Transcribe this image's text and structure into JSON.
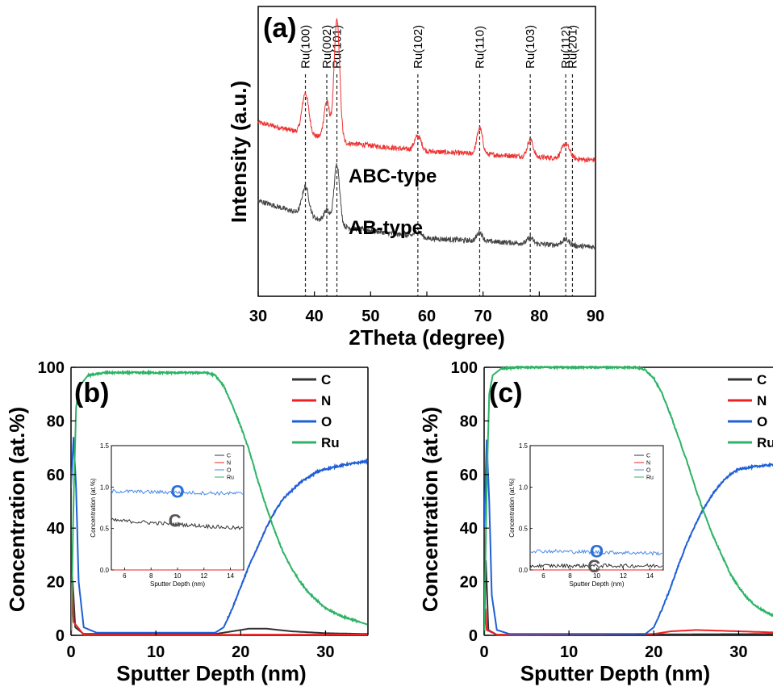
{
  "chart_data": [
    {
      "panel": "(a)",
      "type": "line",
      "xlabel": "2Theta (degree)",
      "ylabel": "Intensity (a.u.)",
      "xlim": [
        30,
        90
      ],
      "xticks": [
        30,
        40,
        50,
        60,
        70,
        80,
        90
      ],
      "ytick_labels": "none",
      "reference_lines": [
        {
          "x": 38.4,
          "label": "Ru(100)"
        },
        {
          "x": 42.2,
          "label": "Ru(002)"
        },
        {
          "x": 44.0,
          "label": "Ru(101)"
        },
        {
          "x": 58.4,
          "label": "Ru(102)"
        },
        {
          "x": 69.4,
          "label": "Ru(110)"
        },
        {
          "x": 78.4,
          "label": "Ru(103)"
        },
        {
          "x": 84.7,
          "label": "Ru(112)"
        },
        {
          "x": 85.9,
          "label": "Ru(201)"
        }
      ],
      "series": [
        {
          "name": "ABC-type",
          "color": "#ee3333",
          "baseline": [
            [
              30,
              0.6
            ],
            [
              45,
              0.53
            ],
            [
              60,
              0.5
            ],
            [
              90,
              0.47
            ]
          ],
          "peaks": [
            {
              "x": 38.4,
              "height": 0.14,
              "width": 0.6
            },
            {
              "x": 42.2,
              "height": 0.13,
              "width": 0.5
            },
            {
              "x": 44.0,
              "height": 0.42,
              "width": 0.5
            },
            {
              "x": 58.4,
              "height": 0.05,
              "width": 0.6
            },
            {
              "x": 69.4,
              "height": 0.09,
              "width": 0.5
            },
            {
              "x": 78.4,
              "height": 0.06,
              "width": 0.5
            },
            {
              "x": 84.7,
              "height": 0.05,
              "width": 0.7
            }
          ]
        },
        {
          "name": "AB-type",
          "color": "#444444",
          "baseline": [
            [
              30,
              0.33
            ],
            [
              45,
              0.24
            ],
            [
              60,
              0.2
            ],
            [
              90,
              0.17
            ]
          ],
          "peaks": [
            {
              "x": 38.4,
              "height": 0.1,
              "width": 0.6
            },
            {
              "x": 42.2,
              "height": 0.04,
              "width": 0.5
            },
            {
              "x": 44.0,
              "height": 0.21,
              "width": 0.5
            },
            {
              "x": 58.4,
              "height": 0.02,
              "width": 0.6
            },
            {
              "x": 69.4,
              "height": 0.03,
              "width": 0.5
            },
            {
              "x": 78.4,
              "height": 0.02,
              "width": 0.5
            },
            {
              "x": 84.7,
              "height": 0.02,
              "width": 0.7
            }
          ]
        }
      ]
    },
    {
      "panel": "(b)",
      "type": "line",
      "xlabel": "Sputter Depth (nm)",
      "ylabel": "Concentration (at.%)",
      "xlim": [
        0,
        35
      ],
      "ylim": [
        0,
        100
      ],
      "xticks": [
        0,
        10,
        20,
        30
      ],
      "yticks": [
        0,
        20,
        40,
        60,
        80,
        100
      ],
      "legend": [
        "C",
        "N",
        "O",
        "Ru"
      ],
      "legend_position": "top-right",
      "series": [
        {
          "name": "C",
          "color": "#333333",
          "points": [
            [
              0,
              0
            ],
            [
              0.2,
              20
            ],
            [
              0.5,
              3
            ],
            [
              1.5,
              0.5
            ],
            [
              17,
              0.5
            ],
            [
              19,
              1.5
            ],
            [
              21,
              2.5
            ],
            [
              23,
              2.5
            ],
            [
              26,
              1.5
            ],
            [
              30,
              0.8
            ],
            [
              35,
              0.5
            ]
          ]
        },
        {
          "name": "N",
          "color": "#ee2222",
          "points": [
            [
              0,
              0
            ],
            [
              0.15,
              22
            ],
            [
              0.3,
              5
            ],
            [
              1.5,
              0.2
            ],
            [
              35,
              0.3
            ]
          ]
        },
        {
          "name": "O",
          "color": "#1f5fd6",
          "points": [
            [
              0,
              55
            ],
            [
              0.3,
              74
            ],
            [
              0.6,
              55
            ],
            [
              0.9,
              20
            ],
            [
              1.5,
              3
            ],
            [
              3,
              1
            ],
            [
              17,
              1
            ],
            [
              18,
              3
            ],
            [
              19,
              10
            ],
            [
              20,
              18
            ],
            [
              21,
              26
            ],
            [
              22,
              33
            ],
            [
              23,
              40
            ],
            [
              24,
              46
            ],
            [
              25,
              51
            ],
            [
              26,
              54
            ],
            [
              27,
              57
            ],
            [
              28,
              59
            ],
            [
              29,
              61
            ],
            [
              30,
              62
            ],
            [
              32,
              63.5
            ],
            [
              35,
              65
            ]
          ]
        },
        {
          "name": "Ru",
          "color": "#2db366",
          "points": [
            [
              0,
              0
            ],
            [
              0.3,
              50
            ],
            [
              0.6,
              85
            ],
            [
              1,
              93
            ],
            [
              2,
              97
            ],
            [
              4,
              98
            ],
            [
              10,
              98
            ],
            [
              16,
              98
            ],
            [
              17,
              97
            ],
            [
              18,
              93
            ],
            [
              19,
              86
            ],
            [
              20,
              78
            ],
            [
              21,
              69
            ],
            [
              22,
              58
            ],
            [
              23,
              48
            ],
            [
              24,
              39
            ],
            [
              25,
              31
            ],
            [
              26,
              25
            ],
            [
              27,
              20
            ],
            [
              28,
              16
            ],
            [
              29,
              13
            ],
            [
              30,
              10
            ],
            [
              32,
              7
            ],
            [
              35,
              4
            ]
          ]
        }
      ],
      "annotations": [
        "O",
        "C"
      ],
      "inset": {
        "xlabel": "Sputter Depth (nm)",
        "ylabel": "Concentration (at.%)",
        "xlim": [
          5,
          15
        ],
        "ylim": [
          0,
          1.5
        ],
        "xticks": [
          6,
          8,
          10,
          12,
          14
        ],
        "yticks": [
          "0.0",
          "0.5",
          "1.0",
          "1.5"
        ],
        "legend": [
          "C",
          "N",
          "O",
          "Ru"
        ],
        "series": [
          {
            "name": "C",
            "color": "#333333",
            "level": [
              0.6,
              0.5
            ]
          },
          {
            "name": "N",
            "color": "#ee2222",
            "level": [
              0.0,
              0.0
            ]
          },
          {
            "name": "O",
            "color": "#4a8ae8",
            "level": [
              0.95,
              0.92
            ]
          },
          {
            "name": "Ru",
            "color": "#2db366",
            "level": [
              null,
              null
            ]
          }
        ]
      }
    },
    {
      "panel": "(c)",
      "type": "line",
      "xlabel": "Sputter Depth (nm)",
      "ylabel": "Concentration (at.%)",
      "xlim": [
        0,
        35
      ],
      "ylim": [
        0,
        100
      ],
      "xticks": [
        0,
        10,
        20,
        30
      ],
      "yticks": [
        0,
        20,
        40,
        60,
        80,
        100
      ],
      "legend": [
        "C",
        "N",
        "O",
        "Ru"
      ],
      "legend_position": "top-right",
      "series": [
        {
          "name": "C",
          "color": "#333333",
          "points": [
            [
              0,
              0
            ],
            [
              0.2,
              28
            ],
            [
              0.5,
              2
            ],
            [
              1.5,
              0.2
            ],
            [
              35,
              0.5
            ]
          ]
        },
        {
          "name": "N",
          "color": "#ee2222",
          "points": [
            [
              0,
              0
            ],
            [
              0.15,
              10
            ],
            [
              0.3,
              2
            ],
            [
              1.5,
              0.2
            ],
            [
              20,
              0.5
            ],
            [
              22,
              1.5
            ],
            [
              25,
              2
            ],
            [
              30,
              1.5
            ],
            [
              35,
              1
            ]
          ]
        },
        {
          "name": "O",
          "color": "#1f5fd6",
          "points": [
            [
              0,
              40
            ],
            [
              0.3,
              73
            ],
            [
              0.6,
              50
            ],
            [
              0.9,
              15
            ],
            [
              1.5,
              2
            ],
            [
              3,
              0.5
            ],
            [
              19,
              0.5
            ],
            [
              20,
              3
            ],
            [
              21,
              10
            ],
            [
              22,
              18
            ],
            [
              23,
              27
            ],
            [
              24,
              35
            ],
            [
              25,
              42
            ],
            [
              26,
              48
            ],
            [
              27,
              53
            ],
            [
              28,
              57
            ],
            [
              29,
              60
            ],
            [
              30,
              62
            ],
            [
              32,
              63
            ],
            [
              35,
              64
            ]
          ]
        },
        {
          "name": "Ru",
          "color": "#2db366",
          "points": [
            [
              0,
              0
            ],
            [
              0.3,
              55
            ],
            [
              0.6,
              90
            ],
            [
              1,
              97
            ],
            [
              2,
              99.5
            ],
            [
              4,
              100
            ],
            [
              18,
              100
            ],
            [
              19,
              99
            ],
            [
              20,
              96
            ],
            [
              21,
              90
            ],
            [
              22,
              82
            ],
            [
              23,
              73
            ],
            [
              24,
              64
            ],
            [
              25,
              54
            ],
            [
              26,
              45
            ],
            [
              27,
              37
            ],
            [
              28,
              30
            ],
            [
              29,
              23
            ],
            [
              30,
              18
            ],
            [
              31,
              14
            ],
            [
              32,
              11
            ],
            [
              33,
              9
            ],
            [
              35,
              6
            ]
          ]
        }
      ],
      "annotations": [
        "O",
        "C"
      ],
      "inset": {
        "xlabel": "Sputter Depth (nm)",
        "ylabel": "Concentration (at.%)",
        "xlim": [
          5,
          15
        ],
        "ylim": [
          0,
          1.5
        ],
        "xticks": [
          6,
          8,
          10,
          12,
          14
        ],
        "yticks": [
          "0.0",
          "0.5",
          "1.0",
          "1.5"
        ],
        "legend": [
          "C",
          "N",
          "O",
          "Ru"
        ],
        "series": [
          {
            "name": "C",
            "color": "#333333",
            "level": [
              0.05,
              0.05
            ]
          },
          {
            "name": "N",
            "color": "#ee2222",
            "level": [
              0.0,
              0.0
            ]
          },
          {
            "name": "O",
            "color": "#4a8ae8",
            "level": [
              0.23,
              0.2
            ]
          },
          {
            "name": "Ru",
            "color": "#2db366",
            "level": [
              null,
              null
            ]
          }
        ]
      }
    }
  ]
}
